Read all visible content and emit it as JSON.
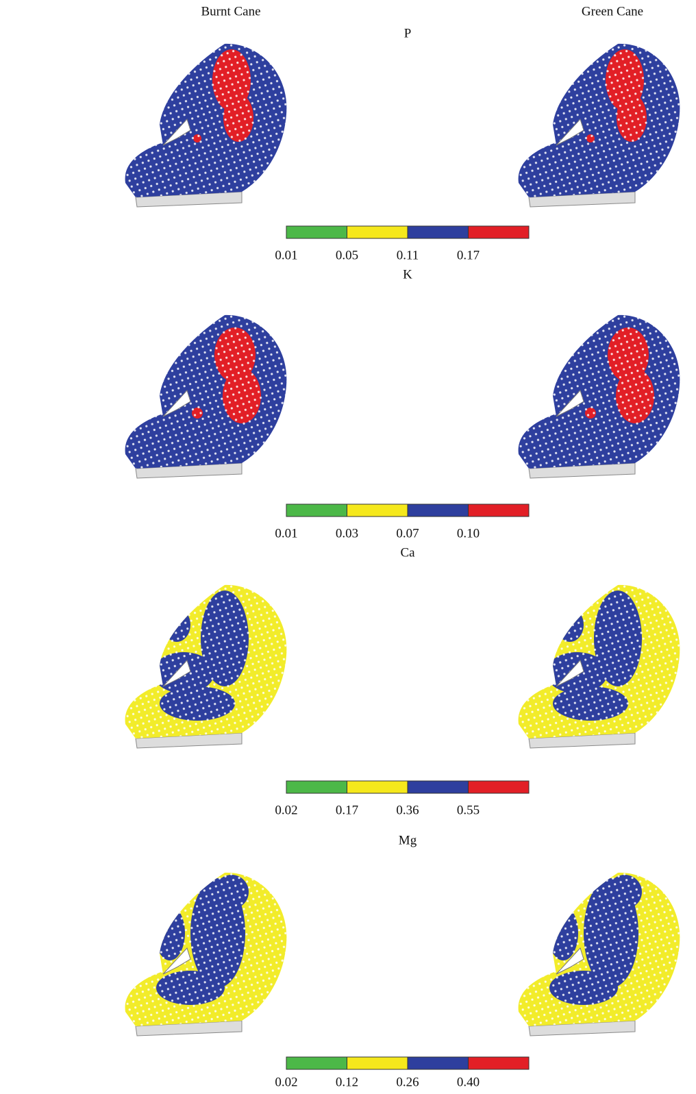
{
  "headers": [
    "Burnt Cane",
    "Green Cane"
  ],
  "panels": [
    {
      "title": "P",
      "colorbar": {
        "colors": [
          "#4cb848",
          "#f5e81c",
          "#2e3f9e",
          "#e21f26"
        ],
        "ticks": [
          0.01,
          0.05,
          0.11,
          0.17
        ]
      }
    },
    {
      "title": "K",
      "colorbar": {
        "colors": [
          "#4cb848",
          "#f5e81c",
          "#2e3f9e",
          "#e21f26"
        ],
        "ticks": [
          0.01,
          0.03,
          0.07,
          {
            "value": 0.1,
            "label": "0.10"
          }
        ]
      }
    },
    {
      "title": "Ca",
      "colorbar": {
        "colors": [
          "#4cb848",
          "#f5e81c",
          "#2e3f9e",
          "#e21f26"
        ],
        "ticks": [
          0.02,
          0.17,
          0.36,
          0.55
        ]
      }
    },
    {
      "title": "Mg",
      "colorbar": {
        "colors": [
          "#4cb848",
          "#f5e81c",
          "#2e3f9e",
          "#e21f26"
        ],
        "ticks": [
          0.02,
          0.12,
          0.26,
          {
            "value": 0.4,
            "label": "0.40"
          }
        ]
      }
    }
  ]
}
